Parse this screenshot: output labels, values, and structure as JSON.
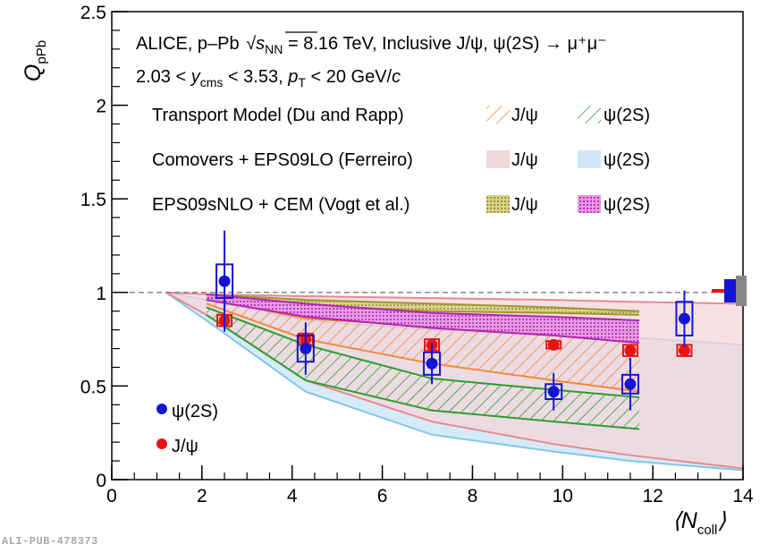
{
  "footer": {
    "id": "ALI-PUB-478373"
  },
  "chart_data": {
    "type": "scatter",
    "xlabel": "⟨N_coll⟩",
    "ylabel": "Q_pPb",
    "xlim": [
      0,
      14
    ],
    "ylim": [
      0,
      2.5
    ],
    "x_ticks": [
      "0",
      "2",
      "4",
      "6",
      "8",
      "10",
      "12",
      "14"
    ],
    "y_ticks": [
      "0",
      "0.5",
      "1",
      "1.5",
      "2",
      "2.5"
    ],
    "reference_line": 1,
    "annotations": {
      "line1_prefix": "ALICE, p–Pb ",
      "line1_sqrt": "s",
      "line1_sub": "NN",
      "line1_rest": " = 8.16 TeV, Inclusive J/ψ, ψ(2S) → μ⁺μ⁻",
      "line2_a": "2.03 < ",
      "line2_y": "y",
      "line2_ysub": "cms",
      "line2_b": " < 3.53, ",
      "line2_p": "p",
      "line2_psub": "T",
      "line2_c": " < 20 GeV/",
      "line2_cunit": "c"
    },
    "model_legend": [
      {
        "label": "Transport Model (Du and Rapp)",
        "jpsi": "J/ψ",
        "psi2s": "ψ(2S)"
      },
      {
        "label": "Comovers + EPS09LO (Ferreiro)",
        "jpsi": "J/ψ",
        "psi2s": "ψ(2S)"
      },
      {
        "label": "EPS09sNLO + CEM (Vogt et al.)",
        "jpsi": "J/ψ",
        "psi2s": "ψ(2S)"
      }
    ],
    "series": [
      {
        "name": "ψ(2S)",
        "color": "#1414d4",
        "points": [
          {
            "x": 2.5,
            "y": 1.06,
            "stat": 0.27,
            "sys": 0.09
          },
          {
            "x": 4.3,
            "y": 0.7,
            "stat": 0.14,
            "sys": 0.07
          },
          {
            "x": 7.1,
            "y": 0.62,
            "stat": 0.11,
            "sys": 0.06
          },
          {
            "x": 9.8,
            "y": 0.47,
            "stat": 0.1,
            "sys": 0.04
          },
          {
            "x": 11.5,
            "y": 0.51,
            "stat": 0.14,
            "sys": 0.05
          },
          {
            "x": 12.7,
            "y": 0.86,
            "stat": 0.15,
            "sys": 0.09
          }
        ]
      },
      {
        "name": "J/ψ",
        "color": "#e61414",
        "points": [
          {
            "x": 2.5,
            "y": 0.85,
            "stat": 0.01,
            "sys": 0.03
          },
          {
            "x": 4.3,
            "y": 0.75,
            "stat": 0.01,
            "sys": 0.03
          },
          {
            "x": 7.1,
            "y": 0.72,
            "stat": 0.01,
            "sys": 0.03
          },
          {
            "x": 9.8,
            "y": 0.72,
            "stat": 0.01,
            "sys": 0.02
          },
          {
            "x": 11.5,
            "y": 0.69,
            "stat": 0.01,
            "sys": 0.03
          },
          {
            "x": 12.7,
            "y": 0.69,
            "stat": 0.01,
            "sys": 0.03
          }
        ]
      }
    ],
    "bands": [
      {
        "model": "Comovers + EPS09LO (Ferreiro)",
        "state": "ψ(2S)",
        "fill": "#cfe8f8",
        "upper": [
          [
            1.2,
            1
          ],
          [
            2.1,
            0.96
          ],
          [
            4.3,
            0.85
          ],
          [
            7.1,
            0.8
          ],
          [
            9.8,
            0.77
          ],
          [
            11.5,
            0.76
          ],
          [
            14,
            0.72
          ]
        ],
        "lower": [
          [
            1.2,
            1
          ],
          [
            2.1,
            0.85
          ],
          [
            4.3,
            0.47
          ],
          [
            7.1,
            0.24
          ],
          [
            9.8,
            0.15
          ],
          [
            11.5,
            0.1
          ],
          [
            14,
            0.05
          ]
        ]
      },
      {
        "model": "Comovers + EPS09LO (Ferreiro)",
        "state": "J/ψ",
        "fill": "#f3d6d9",
        "upper": [
          [
            1.2,
            1
          ],
          [
            2.1,
            0.99
          ],
          [
            4.3,
            0.98
          ],
          [
            7.1,
            0.97
          ],
          [
            9.8,
            0.96
          ],
          [
            11.5,
            0.95
          ],
          [
            14,
            0.94
          ]
        ],
        "lower": [
          [
            1.2,
            1
          ],
          [
            2.1,
            0.88
          ],
          [
            4.3,
            0.53
          ],
          [
            7.1,
            0.31
          ],
          [
            9.8,
            0.19
          ],
          [
            11.5,
            0.13
          ],
          [
            14,
            0.06
          ]
        ]
      },
      {
        "model": "Transport Model (Du and Rapp)",
        "state": "ψ(2S)",
        "fill": "#2e9e2e",
        "upper": [
          [
            2.1,
            0.92
          ],
          [
            4.3,
            0.72
          ],
          [
            7.1,
            0.54
          ],
          [
            9.8,
            0.48
          ],
          [
            11.7,
            0.44
          ]
        ],
        "lower": [
          [
            2.1,
            0.88
          ],
          [
            4.3,
            0.53
          ],
          [
            7.1,
            0.37
          ],
          [
            9.8,
            0.31
          ],
          [
            11.7,
            0.27
          ]
        ]
      },
      {
        "model": "Transport Model (Du and Rapp)",
        "state": "J/ψ",
        "fill": "#f08a3a",
        "upper": [
          [
            2.1,
            0.97
          ],
          [
            4.3,
            0.86
          ],
          [
            7.1,
            0.82
          ],
          [
            9.8,
            0.8
          ],
          [
            11.7,
            0.79
          ]
        ],
        "lower": [
          [
            2.1,
            0.94
          ],
          [
            4.3,
            0.75
          ],
          [
            7.1,
            0.62
          ],
          [
            9.8,
            0.53
          ],
          [
            11.7,
            0.47
          ]
        ]
      },
      {
        "model": "EPS09sNLO + CEM (Vogt et al.)",
        "state": "J/ψ",
        "fill": "#b0a640",
        "upper": [
          [
            2.1,
            0.99
          ],
          [
            4.3,
            0.96
          ],
          [
            7.1,
            0.94
          ],
          [
            9.8,
            0.92
          ],
          [
            11.7,
            0.9
          ]
        ],
        "lower": [
          [
            2.1,
            0.97
          ],
          [
            4.3,
            0.93
          ],
          [
            7.1,
            0.9
          ],
          [
            9.8,
            0.89
          ],
          [
            11.7,
            0.88
          ]
        ]
      },
      {
        "model": "EPS09sNLO + CEM (Vogt et al.)",
        "state": "ψ(2S)",
        "fill": "#cc44cc",
        "upper": [
          [
            2.1,
            0.99
          ],
          [
            4.3,
            0.94
          ],
          [
            7.1,
            0.89
          ],
          [
            9.8,
            0.87
          ],
          [
            11.7,
            0.85
          ]
        ],
        "lower": [
          [
            2.1,
            0.96
          ],
          [
            4.3,
            0.87
          ],
          [
            7.1,
            0.81
          ],
          [
            9.8,
            0.77
          ],
          [
            11.7,
            0.73
          ]
        ]
      }
    ],
    "colors": {
      "psi2s_marker": "#1414d4",
      "jpsi_marker": "#e61414",
      "transport_jpsi": "#f08a3a",
      "transport_psi2s": "#2e9e2e",
      "comover_jpsi": "#f3d6d9",
      "comover_psi2s": "#cfe8f8",
      "vogt_jpsi": "#b0a640",
      "vogt_psi2s": "#cc44cc"
    }
  }
}
